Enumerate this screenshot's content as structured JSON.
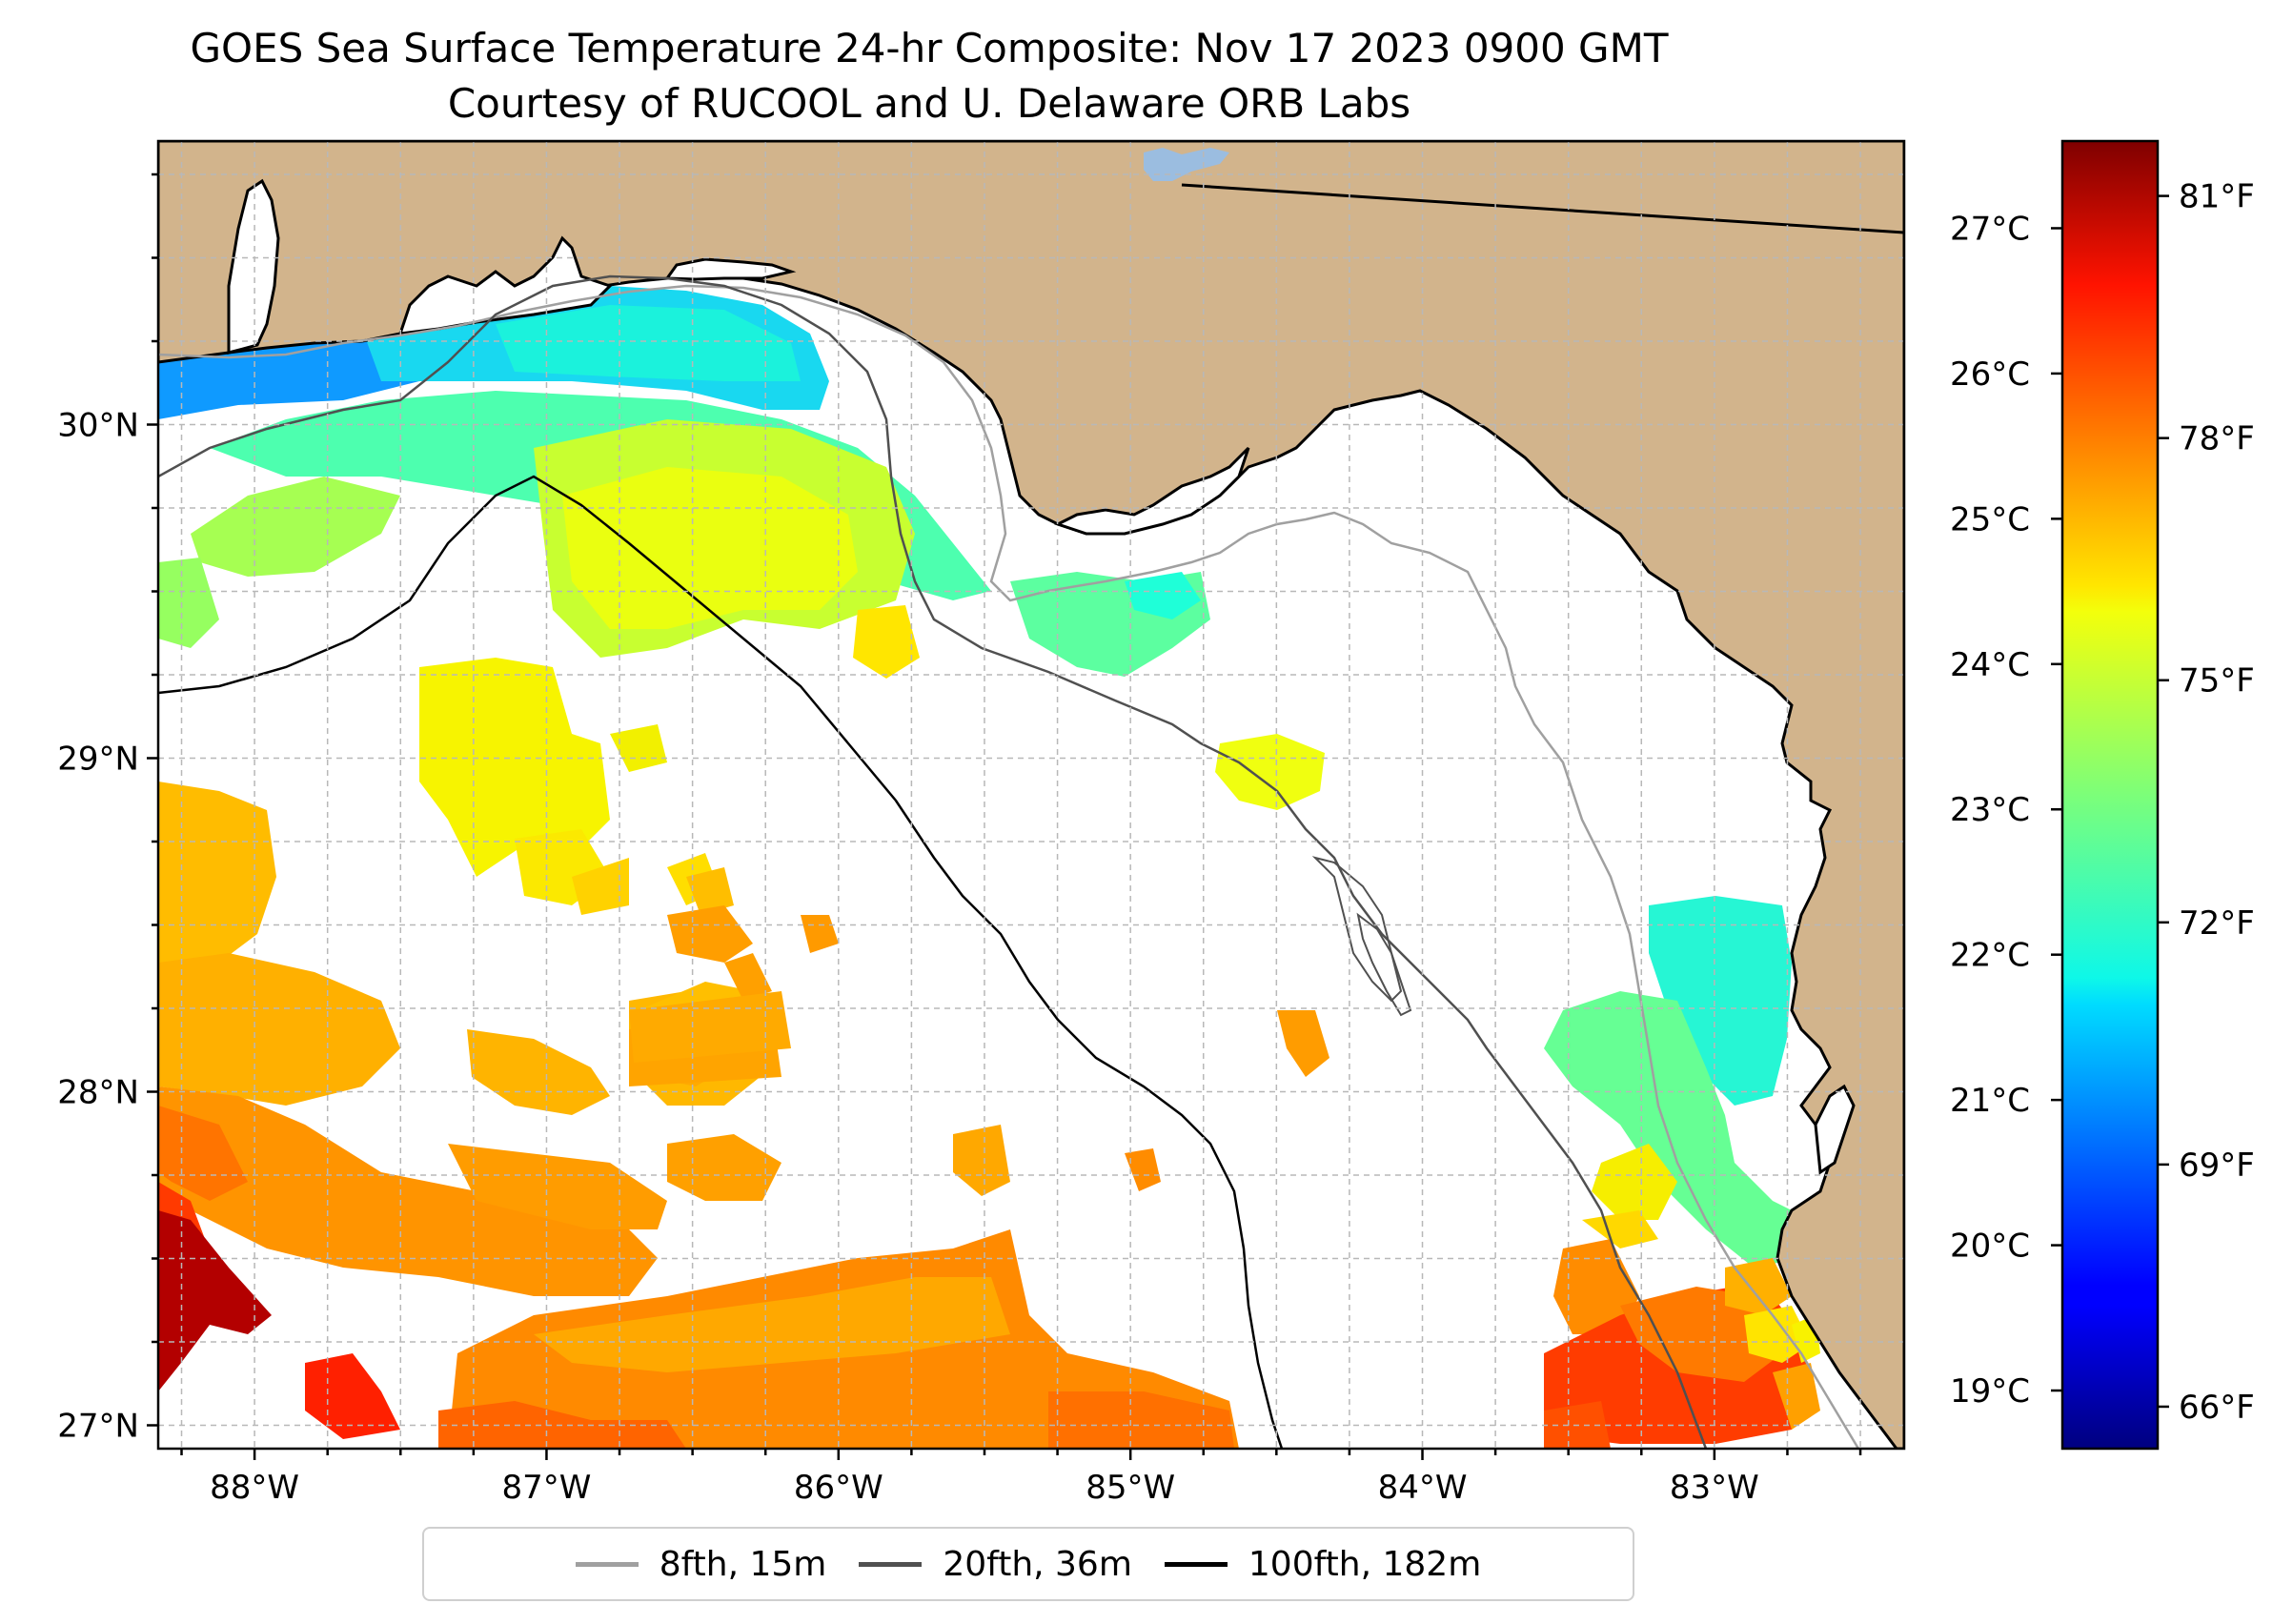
{
  "title": {
    "line1": "GOES Sea Surface Temperature 24-hr Composite: Nov 17 2023 0900 GMT",
    "line2": "Courtesy of RUCOOL and U. Delaware ORB Labs"
  },
  "map": {
    "region": "Northeastern Gulf of Mexico",
    "lon_range": [
      -88.33,
      -82.35
    ],
    "lat_range": [
      26.93,
      30.85
    ],
    "land_color": "#d2b48c",
    "no_data_color": "#ffffff",
    "lat_ticks": [
      {
        "value": 30,
        "label": "30°N"
      },
      {
        "value": 29,
        "label": "29°N"
      },
      {
        "value": 28,
        "label": "28°N"
      },
      {
        "value": 27,
        "label": "27°N"
      }
    ],
    "lon_ticks": [
      {
        "value": -88,
        "label": "88°W"
      },
      {
        "value": -87,
        "label": "87°W"
      },
      {
        "value": -86,
        "label": "86°W"
      },
      {
        "value": -85,
        "label": "85°W"
      },
      {
        "value": -84,
        "label": "84°W"
      },
      {
        "value": -83,
        "label": "83°W"
      }
    ]
  },
  "isobaths": [
    {
      "label": "8fth, 15m",
      "color": "#a0a0a0"
    },
    {
      "label": "20fth, 36m",
      "color": "#505050"
    },
    {
      "label": "100fth, 182m",
      "color": "#000000"
    }
  ],
  "colorbar": {
    "colormap": "jet",
    "range_c": [
      18.6,
      27.6
    ],
    "celsius_ticks": [
      {
        "value": 27,
        "label": "27°C"
      },
      {
        "value": 26,
        "label": "26°C"
      },
      {
        "value": 25,
        "label": "25°C"
      },
      {
        "value": 24,
        "label": "24°C"
      },
      {
        "value": 23,
        "label": "23°C"
      },
      {
        "value": 22,
        "label": "22°C"
      },
      {
        "value": 21,
        "label": "21°C"
      },
      {
        "value": 20,
        "label": "20°C"
      },
      {
        "value": 19,
        "label": "19°C"
      }
    ],
    "fahrenheit_ticks": [
      {
        "value": 81,
        "label": "81°F"
      },
      {
        "value": 78,
        "label": "78°F"
      },
      {
        "value": 75,
        "label": "75°F"
      },
      {
        "value": 72,
        "label": "72°F"
      },
      {
        "value": 69,
        "label": "69°F"
      },
      {
        "value": 66,
        "label": "66°F"
      }
    ]
  }
}
